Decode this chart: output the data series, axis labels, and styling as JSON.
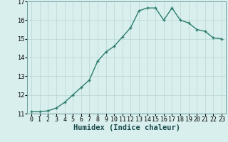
{
  "xlabel": "Humidex (Indice chaleur)",
  "x": [
    0,
    1,
    2,
    3,
    4,
    5,
    6,
    7,
    8,
    9,
    10,
    11,
    12,
    13,
    14,
    15,
    16,
    17,
    18,
    19,
    20,
    21,
    22,
    23
  ],
  "y": [
    11.1,
    11.1,
    11.15,
    11.3,
    11.6,
    12.0,
    12.4,
    12.8,
    13.8,
    14.3,
    14.6,
    15.1,
    15.6,
    16.5,
    16.65,
    16.65,
    16.0,
    16.65,
    16.0,
    15.85,
    15.5,
    15.4,
    15.05,
    15.0
  ],
  "ylim": [
    11.0,
    17.0
  ],
  "xlim": [
    -0.5,
    23.5
  ],
  "line_color": "#2e7d6e",
  "marker": "P",
  "marker_size": 3,
  "line_width": 1.0,
  "bg_color": "#d8efee",
  "grid_color": "#b8d4d2",
  "label_fontsize": 7.5,
  "tick_fontsize": 6,
  "yticks": [
    11,
    12,
    13,
    14,
    15,
    16,
    17
  ],
  "xticks": [
    0,
    1,
    2,
    3,
    4,
    5,
    6,
    7,
    8,
    9,
    10,
    11,
    12,
    13,
    14,
    15,
    16,
    17,
    18,
    19,
    20,
    21,
    22,
    23
  ]
}
